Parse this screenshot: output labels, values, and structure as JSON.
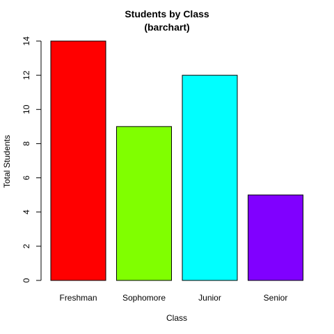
{
  "chart_data": {
    "type": "bar",
    "title": [
      "Students by Class",
      "(barchart)"
    ],
    "xlabel": "Class",
    "ylabel": "Total Students",
    "categories": [
      "Freshman",
      "Sophomore",
      "Junior",
      "Senior"
    ],
    "values": [
      14,
      9,
      12,
      5
    ],
    "colors": [
      "#ff0000",
      "#80ff00",
      "#00ffff",
      "#8000ff"
    ],
    "ylim": [
      0,
      14
    ],
    "yticks": [
      0,
      2,
      4,
      6,
      8,
      10,
      12,
      14
    ],
    "grid": false,
    "legend": "none"
  }
}
